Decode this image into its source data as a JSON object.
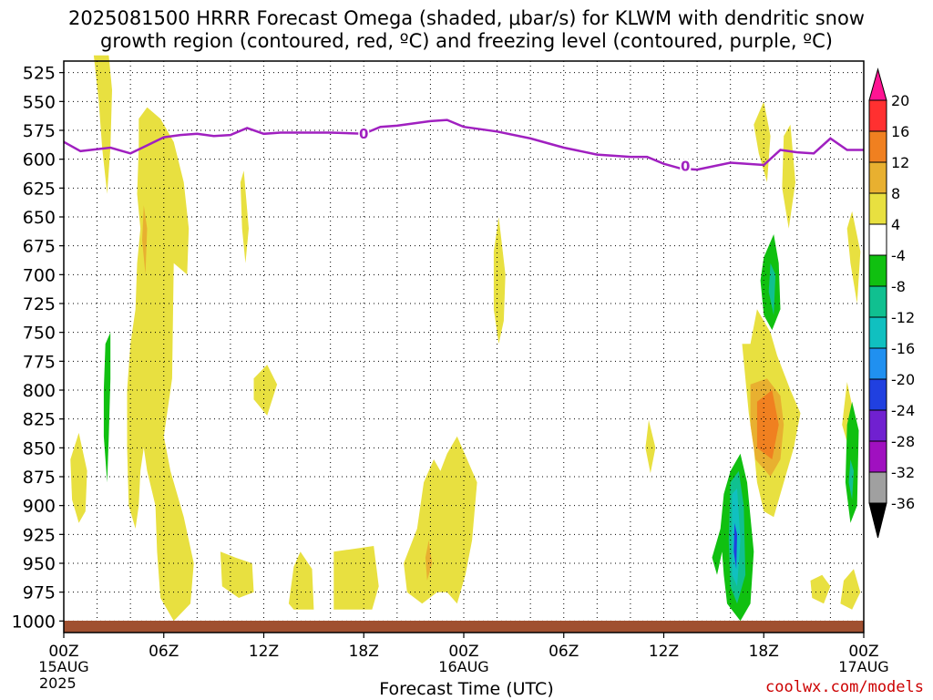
{
  "header": {
    "line1": "2025081500 HRRR Forecast Omega (shaded, μbar/s) for KLWM with dendritic snow",
    "line2": "growth region (contoured, red, ºC) and freezing level (contoured, purple, ºC)"
  },
  "footer": {
    "credit": "coolwx.com/models"
  },
  "chart_data": {
    "type": "heatmap",
    "xlabel": "Forecast Time (UTC)",
    "ylabel": "",
    "x_unit": "forecast hour",
    "xlim": [
      0,
      48
    ],
    "y_unit": "mb",
    "ylim": [
      1010,
      515
    ],
    "y_ticks": [
      525,
      550,
      575,
      600,
      625,
      650,
      675,
      700,
      725,
      750,
      775,
      800,
      825,
      850,
      875,
      900,
      925,
      950,
      975,
      1000
    ],
    "x_ticks": [
      {
        "hour": 0,
        "label": "00Z",
        "sub1": "15AUG",
        "sub2": "2025"
      },
      {
        "hour": 6,
        "label": "06Z",
        "sub1": "",
        "sub2": ""
      },
      {
        "hour": 12,
        "label": "12Z",
        "sub1": "",
        "sub2": ""
      },
      {
        "hour": 18,
        "label": "18Z",
        "sub1": "",
        "sub2": ""
      },
      {
        "hour": 24,
        "label": "00Z",
        "sub1": "16AUG",
        "sub2": ""
      },
      {
        "hour": 30,
        "label": "06Z",
        "sub1": "",
        "sub2": ""
      },
      {
        "hour": 36,
        "label": "12Z",
        "sub1": "",
        "sub2": ""
      },
      {
        "hour": 42,
        "label": "18Z",
        "sub1": "",
        "sub2": ""
      },
      {
        "hour": 48,
        "label": "00Z",
        "sub1": "17AUG",
        "sub2": ""
      }
    ],
    "grid": true,
    "colorbar": {
      "labels": [
        "20",
        "16",
        "12",
        "8",
        "4",
        "-4",
        "-8",
        "-12",
        "-16",
        "-20",
        "-24",
        "-28",
        "-32",
        "-36"
      ],
      "colors": [
        "#ff1493",
        "#ff3030",
        "#f08020",
        "#e8b030",
        "#e8e040",
        "#ffffff",
        "#10c010",
        "#10c090",
        "#10c0c0",
        "#2090f0",
        "#2040e0",
        "#7020d0",
        "#a010c0",
        "#a0a0a0",
        "#000000"
      ]
    },
    "freezing_level": {
      "label": "0",
      "color": "#a020c0",
      "points": [
        [
          0,
          585
        ],
        [
          1,
          593
        ],
        [
          2.8,
          590
        ],
        [
          4,
          595
        ],
        [
          5,
          588
        ],
        [
          6,
          581
        ],
        [
          7,
          579
        ],
        [
          8,
          578
        ],
        [
          9,
          580
        ],
        [
          10,
          579
        ],
        [
          11,
          573
        ],
        [
          12,
          578
        ],
        [
          13,
          577
        ],
        [
          16,
          577
        ],
        [
          18,
          578
        ],
        [
          19,
          572
        ],
        [
          20,
          571
        ],
        [
          21,
          569
        ],
        [
          22,
          567
        ],
        [
          23,
          566
        ],
        [
          24,
          572
        ],
        [
          26,
          576
        ],
        [
          28,
          582
        ],
        [
          30,
          590
        ],
        [
          32,
          596
        ],
        [
          34,
          598
        ],
        [
          35,
          598
        ],
        [
          36,
          604
        ],
        [
          37,
          608
        ],
        [
          38,
          609
        ],
        [
          40,
          603
        ],
        [
          41,
          604
        ],
        [
          42,
          605
        ],
        [
          43,
          592
        ],
        [
          44,
          594
        ],
        [
          45,
          595
        ],
        [
          46,
          582
        ],
        [
          47,
          592
        ],
        [
          48,
          592
        ]
      ],
      "label_points": [
        [
          18,
          578
        ],
        [
          37.3,
          606
        ]
      ]
    },
    "ground_color": "#a05030",
    "omega_regions": [
      {
        "value": 6,
        "points": [
          [
            1.8,
            510
          ],
          [
            2.7,
            510
          ],
          [
            2.9,
            540
          ],
          [
            2.8,
            590
          ],
          [
            2.6,
            630
          ],
          [
            2.3,
            590
          ],
          [
            2.1,
            550
          ]
        ]
      },
      {
        "value": 6,
        "points": [
          [
            0.4,
            860
          ],
          [
            0.9,
            837
          ],
          [
            1.4,
            870
          ],
          [
            1.3,
            905
          ],
          [
            0.9,
            915
          ],
          [
            0.5,
            895
          ]
        ]
      },
      {
        "value": 6,
        "points": [
          [
            4.5,
            565
          ],
          [
            5.0,
            555
          ],
          [
            5.8,
            565
          ],
          [
            6.6,
            585
          ],
          [
            7.2,
            620
          ],
          [
            7.5,
            660
          ],
          [
            7.4,
            700
          ],
          [
            6.6,
            690
          ],
          [
            6.5,
            790
          ],
          [
            6.0,
            840
          ],
          [
            6.4,
            870
          ],
          [
            7.2,
            910
          ],
          [
            7.8,
            950
          ],
          [
            7.6,
            985
          ],
          [
            6.6,
            1000
          ],
          [
            5.8,
            980
          ],
          [
            5.6,
            940
          ],
          [
            5.5,
            900
          ],
          [
            5.0,
            870
          ],
          [
            4.8,
            850
          ],
          [
            4.6,
            870
          ],
          [
            4.5,
            900
          ],
          [
            4.3,
            920
          ],
          [
            3.9,
            900
          ],
          [
            3.8,
            850
          ],
          [
            3.8,
            800
          ],
          [
            4.0,
            760
          ],
          [
            4.3,
            730
          ],
          [
            4.4,
            690
          ],
          [
            4.6,
            660
          ],
          [
            4.4,
            630
          ],
          [
            4.5,
            590
          ]
        ]
      },
      {
        "value": 6,
        "points": [
          [
            10.8,
            610
          ],
          [
            11.1,
            660
          ],
          [
            10.9,
            690
          ],
          [
            10.7,
            660
          ],
          [
            10.6,
            620
          ]
        ]
      },
      {
        "value": 6,
        "points": [
          [
            11.4,
            790
          ],
          [
            12.2,
            778
          ],
          [
            12.8,
            795
          ],
          [
            12.2,
            822
          ],
          [
            11.4,
            808
          ]
        ]
      },
      {
        "value": 6,
        "points": [
          [
            9.4,
            940
          ],
          [
            10.3,
            945
          ],
          [
            11.3,
            950
          ],
          [
            11.4,
            975
          ],
          [
            10.5,
            980
          ],
          [
            9.5,
            970
          ]
        ]
      },
      {
        "value": 6,
        "points": [
          [
            13.8,
            953
          ],
          [
            14.2,
            940
          ],
          [
            14.9,
            955
          ],
          [
            15,
            990
          ],
          [
            13.8,
            990
          ],
          [
            13.5,
            985
          ]
        ]
      },
      {
        "value": 6,
        "points": [
          [
            16.2,
            940
          ],
          [
            18.6,
            935
          ],
          [
            18.9,
            970
          ],
          [
            18.5,
            990
          ],
          [
            16.2,
            990
          ]
        ]
      },
      {
        "value": 6,
        "points": [
          [
            20.4,
            950
          ],
          [
            21.2,
            920
          ],
          [
            21.6,
            880
          ],
          [
            22.2,
            860
          ],
          [
            22.6,
            870
          ],
          [
            23.0,
            855
          ],
          [
            23.6,
            840
          ],
          [
            24.2,
            860
          ],
          [
            24.8,
            880
          ],
          [
            24.5,
            930
          ],
          [
            24.1,
            960
          ],
          [
            23.6,
            985
          ],
          [
            23.0,
            975
          ],
          [
            22.4,
            975
          ],
          [
            21.5,
            985
          ],
          [
            20.6,
            975
          ]
        ]
      },
      {
        "value": 6,
        "points": [
          [
            25.8,
            680
          ],
          [
            26.1,
            650
          ],
          [
            26.5,
            700
          ],
          [
            26.4,
            740
          ],
          [
            26.1,
            760
          ],
          [
            25.8,
            730
          ]
        ]
      },
      {
        "value": 6,
        "points": [
          [
            35.1,
            826
          ],
          [
            35.5,
            850
          ],
          [
            35.2,
            872
          ],
          [
            34.9,
            850
          ]
        ]
      },
      {
        "value": 6,
        "points": [
          [
            41.4,
            570
          ],
          [
            42.0,
            550
          ],
          [
            42.4,
            580
          ],
          [
            42.2,
            620
          ],
          [
            41.7,
            595
          ]
        ]
      },
      {
        "value": 6,
        "points": [
          [
            43.2,
            580
          ],
          [
            43.6,
            570
          ],
          [
            43.9,
            620
          ],
          [
            43.5,
            660
          ],
          [
            43.1,
            625
          ]
        ]
      },
      {
        "value": 6,
        "points": [
          [
            47.3,
            645
          ],
          [
            47.8,
            680
          ],
          [
            47.6,
            725
          ],
          [
            47.2,
            690
          ],
          [
            47.0,
            660
          ]
        ]
      },
      {
        "value": 6,
        "points": [
          [
            47.0,
            793
          ],
          [
            47.4,
            820
          ],
          [
            47.2,
            855
          ],
          [
            46.7,
            830
          ]
        ]
      },
      {
        "value": 6,
        "points": [
          [
            41.2,
            760
          ],
          [
            41.6,
            730
          ],
          [
            42.4,
            750
          ],
          [
            42.8,
            770
          ],
          [
            43.6,
            800
          ],
          [
            44.2,
            820
          ],
          [
            43.8,
            850
          ],
          [
            43.2,
            880
          ],
          [
            42.6,
            910
          ],
          [
            42.0,
            905
          ],
          [
            41.6,
            880
          ],
          [
            41.4,
            850
          ],
          [
            41.1,
            820
          ],
          [
            40.9,
            790
          ],
          [
            40.7,
            760
          ]
        ]
      },
      {
        "value": 6,
        "points": [
          [
            44.8,
            965
          ],
          [
            45.5,
            960
          ],
          [
            46.0,
            970
          ],
          [
            45.6,
            985
          ],
          [
            44.9,
            980
          ]
        ]
      },
      {
        "value": 6,
        "points": [
          [
            46.8,
            965
          ],
          [
            47.4,
            955
          ],
          [
            47.8,
            975
          ],
          [
            47.3,
            990
          ],
          [
            46.6,
            985
          ]
        ]
      },
      {
        "value": 10,
        "points": [
          [
            41.2,
            795
          ],
          [
            42.2,
            790
          ],
          [
            43.0,
            805
          ],
          [
            43.2,
            830
          ],
          [
            43.0,
            860
          ],
          [
            42.4,
            875
          ],
          [
            41.5,
            860
          ],
          [
            41.2,
            830
          ]
        ]
      },
      {
        "value": 12,
        "points": [
          [
            41.6,
            810
          ],
          [
            42.5,
            800
          ],
          [
            42.9,
            830
          ],
          [
            42.5,
            860
          ],
          [
            41.6,
            850
          ]
        ]
      },
      {
        "value": 10,
        "points": [
          [
            4.8,
            640
          ],
          [
            5.0,
            660
          ],
          [
            4.9,
            700
          ],
          [
            4.7,
            670
          ]
        ]
      },
      {
        "value": 10,
        "points": [
          [
            21.9,
            930
          ],
          [
            22.1,
            950
          ],
          [
            21.8,
            965
          ],
          [
            21.7,
            945
          ]
        ]
      },
      {
        "value": -6,
        "points": [
          [
            2.5,
            760
          ],
          [
            2.8,
            750
          ],
          [
            2.8,
            790
          ],
          [
            2.7,
            840
          ],
          [
            2.6,
            880
          ],
          [
            2.4,
            840
          ],
          [
            2.4,
            800
          ]
        ]
      },
      {
        "value": -6,
        "points": [
          [
            40.0,
            870
          ],
          [
            40.6,
            855
          ],
          [
            41.0,
            880
          ],
          [
            41.4,
            940
          ],
          [
            41.2,
            985
          ],
          [
            40.6,
            1000
          ],
          [
            39.8,
            985
          ],
          [
            39.6,
            960
          ],
          [
            39.5,
            940
          ],
          [
            39.2,
            960
          ],
          [
            38.9,
            945
          ],
          [
            39.4,
            920
          ],
          [
            39.6,
            890
          ]
        ]
      },
      {
        "value": -10,
        "points": [
          [
            40.0,
            880
          ],
          [
            40.5,
            870
          ],
          [
            40.8,
            900
          ],
          [
            40.9,
            960
          ],
          [
            40.4,
            985
          ],
          [
            40.0,
            970
          ],
          [
            39.9,
            930
          ]
        ]
      },
      {
        "value": -14,
        "points": [
          [
            40.1,
            890
          ],
          [
            40.4,
            885
          ],
          [
            40.6,
            930
          ],
          [
            40.4,
            970
          ],
          [
            40.1,
            960
          ]
        ]
      },
      {
        "value": -20,
        "points": [
          [
            40.25,
            915
          ],
          [
            40.4,
            925
          ],
          [
            40.35,
            955
          ],
          [
            40.2,
            940
          ]
        ]
      },
      {
        "value": -6,
        "points": [
          [
            42.0,
            685
          ],
          [
            42.6,
            665
          ],
          [
            42.9,
            690
          ],
          [
            43.0,
            730
          ],
          [
            42.5,
            748
          ],
          [
            42.0,
            735
          ],
          [
            41.8,
            705
          ]
        ]
      },
      {
        "value": -10,
        "points": [
          [
            42.4,
            690
          ],
          [
            42.7,
            700
          ],
          [
            42.6,
            735
          ],
          [
            42.3,
            715
          ]
        ]
      },
      {
        "value": -6,
        "points": [
          [
            47.0,
            830
          ],
          [
            47.3,
            810
          ],
          [
            47.7,
            835
          ],
          [
            47.6,
            900
          ],
          [
            47.2,
            915
          ],
          [
            46.9,
            880
          ]
        ]
      },
      {
        "value": -10,
        "points": [
          [
            47.2,
            860
          ],
          [
            47.4,
            870
          ],
          [
            47.3,
            895
          ],
          [
            47.1,
            880
          ]
        ]
      }
    ]
  }
}
